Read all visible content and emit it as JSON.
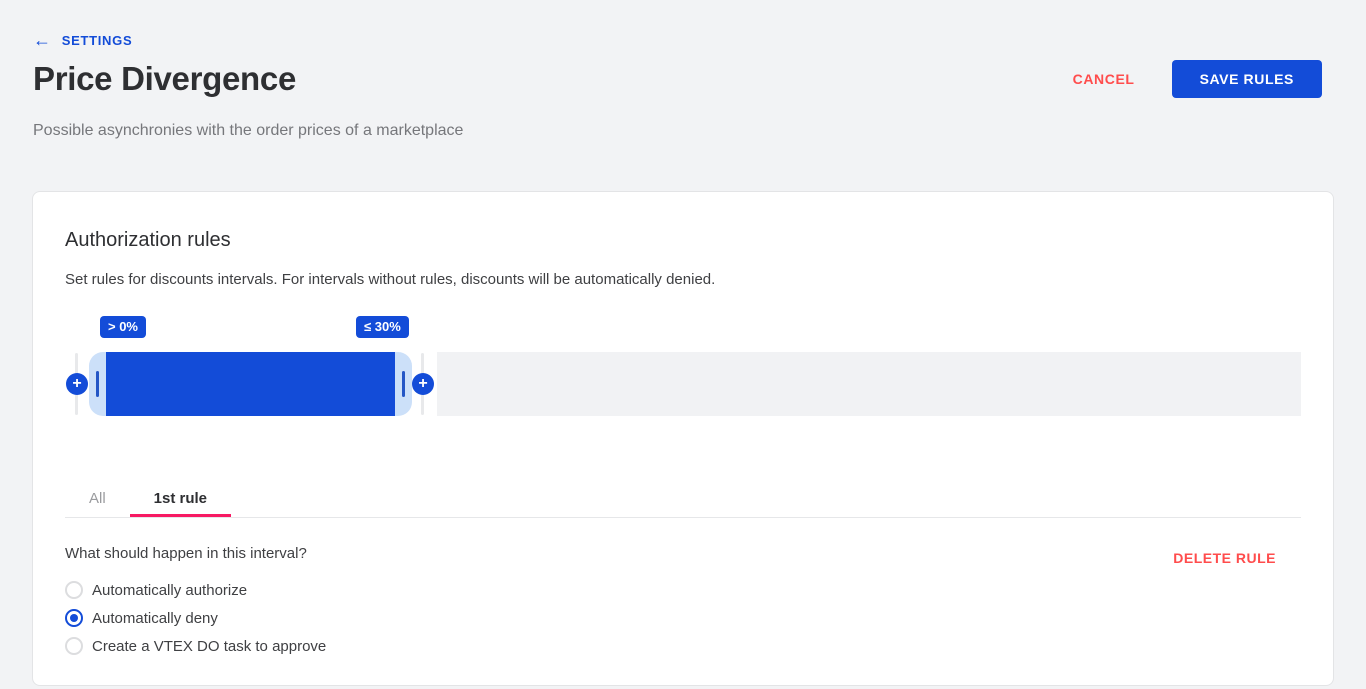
{
  "header": {
    "back_icon": "←",
    "back_label": "SETTINGS",
    "title": "Price Divergence",
    "subtitle": "Possible asynchronies with the order prices of a marketplace",
    "cancel_label": "CANCEL",
    "save_label": "SAVE RULES"
  },
  "card": {
    "heading": "Authorization rules",
    "description": "Set rules for discounts intervals. For intervals without rules, discounts will be automatically denied.",
    "slider": {
      "from_badge": "> 0%",
      "to_badge": "≤ 30%",
      "plus_icon": "+",
      "interval_range": {
        "from_exclusive_percent": 0,
        "to_inclusive_percent": 30
      }
    },
    "tabs": [
      {
        "label": "All",
        "active": false
      },
      {
        "label": "1st rule",
        "active": true
      }
    ],
    "rule_panel": {
      "question": "What should happen in this interval?",
      "options": [
        {
          "label": "Automatically authorize",
          "selected": false
        },
        {
          "label": "Automatically deny",
          "selected": true
        },
        {
          "label": "Create a VTEX DO task to approve",
          "selected": false
        }
      ],
      "delete_label": "DELETE RULE"
    }
  },
  "colors": {
    "primary_blue": "#134cd8",
    "light_blue": "#cce0f9",
    "danger_red": "#ff4c4c",
    "tab_pink": "#f71963",
    "track_gray": "#f1f2f4",
    "page_bg": "#f2f3f5"
  }
}
